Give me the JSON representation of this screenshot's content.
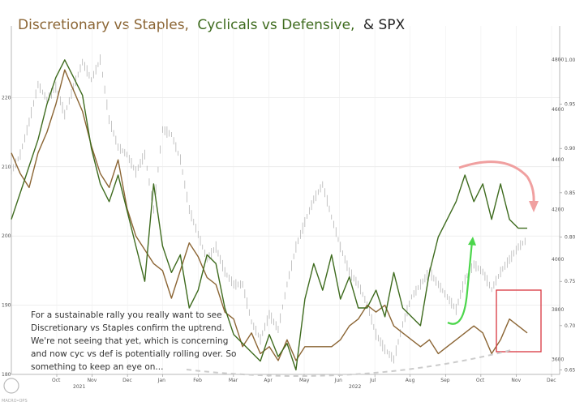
{
  "chart_data": {
    "type": "line",
    "title": {
      "part1": "Discretionary vs Staples,",
      "part2": "Cyclicals vs Defensive,",
      "part3": "& SPX"
    },
    "x_ticks": [
      "Oct",
      "Nov",
      "Dec",
      "Jan",
      "Feb",
      "Mar",
      "Apr",
      "May",
      "Jun",
      "Jul",
      "Aug",
      "Sep",
      "Oct",
      "Nov",
      "Dec"
    ],
    "year_labels": [
      "2021",
      "2022"
    ],
    "left_axis": {
      "ylim": [
        180,
        228
      ],
      "ticks": [
        180,
        190,
        200,
        210,
        220
      ]
    },
    "right_axis_ratio": {
      "ylim": [
        0.645,
        1.02
      ],
      "ticks": [
        "0.65",
        "0.70",
        "0.75",
        "0.80",
        "0.85",
        "0.90",
        "0.95",
        "1.00"
      ]
    },
    "right_axis_spx": {
      "ylim": [
        3540,
        4870
      ],
      "ticks": [
        "3600",
        "3800",
        "4000",
        "4200",
        "4400",
        "4600",
        "4800"
      ]
    },
    "series": [
      {
        "name": "Discretionary vs Staples",
        "color": "#8b6534",
        "axis": "left",
        "values": [
          212,
          209,
          207,
          212,
          215,
          219,
          224,
          221,
          218,
          213,
          209,
          207,
          211,
          204,
          200,
          198,
          196,
          195,
          191,
          195,
          199,
          197,
          194,
          193,
          189,
          188,
          184,
          186,
          183,
          184,
          182,
          185,
          182,
          184,
          184,
          184,
          184,
          185,
          187,
          188,
          190,
          189,
          190,
          187,
          186,
          185,
          184,
          185,
          183,
          184,
          185,
          186,
          187,
          186,
          183,
          185,
          188,
          187,
          186
        ]
      },
      {
        "name": "Cyclicals vs Defensive",
        "color": "#3e6b1e",
        "axis": "right_ratio",
        "values": [
          0.82,
          0.85,
          0.88,
          0.91,
          0.95,
          0.98,
          1.0,
          0.98,
          0.96,
          0.9,
          0.86,
          0.84,
          0.87,
          0.83,
          0.79,
          0.75,
          0.86,
          0.79,
          0.76,
          0.78,
          0.72,
          0.74,
          0.78,
          0.77,
          0.72,
          0.69,
          0.68,
          0.67,
          0.66,
          0.69,
          0.665,
          0.68,
          0.65,
          0.73,
          0.77,
          0.74,
          0.78,
          0.73,
          0.755,
          0.72,
          0.72,
          0.74,
          0.71,
          0.76,
          0.72,
          0.71,
          0.7,
          0.76,
          0.8,
          0.82,
          0.84,
          0.87,
          0.84,
          0.86,
          0.82,
          0.86,
          0.82,
          0.81,
          0.81
        ]
      },
      {
        "name": "SPX",
        "color": "#aaaaaa",
        "axis": "right_spx",
        "values": [
          4350,
          4420,
          4550,
          4700,
          4640,
          4690,
          4580,
          4690,
          4790,
          4720,
          4800,
          4560,
          4450,
          4420,
          4350,
          4420,
          4200,
          4520,
          4500,
          4400,
          4200,
          4100,
          4000,
          4050,
          3950,
          3900,
          3900,
          3750,
          3680,
          3780,
          3720,
          3900,
          4050,
          4150,
          4240,
          4300,
          4170,
          4050,
          3950,
          3900,
          3820,
          3700,
          3640,
          3600,
          3740,
          3850,
          3900,
          3950,
          3900,
          3850,
          3800,
          3920,
          3980,
          3950,
          3880,
          3950,
          4000,
          4050,
          4080
        ]
      }
    ],
    "annotation": {
      "lines": [
        "For a sustainable rally you really want to see",
        "Discretionary vs Staples confirm the uptrend.",
        "We're not seeing that yet, which is concerning",
        "and now cyc vs def is potentially rolling over. So",
        "something to keep an eye on..."
      ]
    },
    "colors": {
      "arrow_up": "#4cd64c",
      "arrow_down": "#f0a0a0",
      "highlight_box": "#d9363e",
      "dashed_link": "#cccccc"
    },
    "watermark": "MACRO•OPS"
  }
}
